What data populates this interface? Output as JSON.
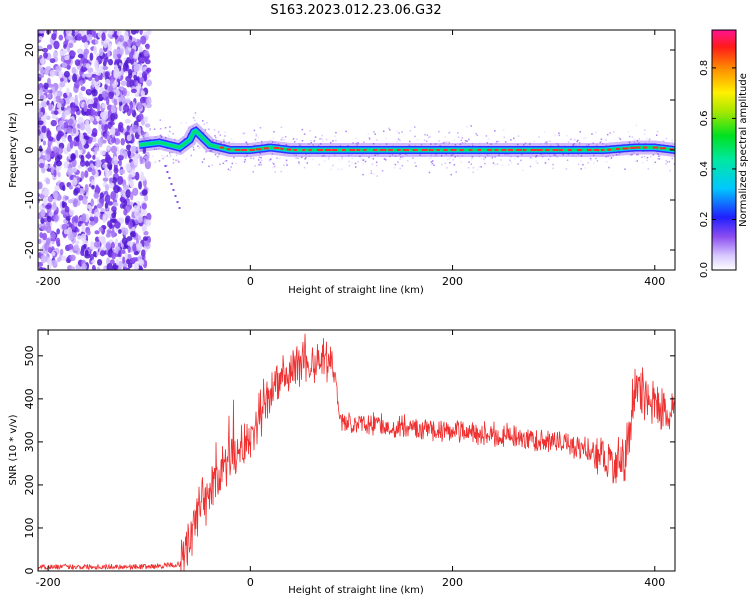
{
  "title": "S163.2023.012.23.06.G32",
  "colors": {
    "snr_line": "#ee3030",
    "frame": "#000000",
    "spectral_low": "#a070f0",
    "spectral_mid": "#00e070",
    "spectral_high": "#ff2a2a"
  },
  "chart_data": [
    {
      "type": "heatmap",
      "xlabel": "Height of straight line (km)",
      "ylabel": "Frequency (Hz)",
      "xlim": [
        -210,
        420
      ],
      "ylim": [
        -24,
        24
      ],
      "xticks": [
        -200,
        0,
        200,
        400
      ],
      "yticks": [
        -20,
        -10,
        0,
        10,
        20
      ],
      "colorbar": {
        "label": "Normalized spectral amplitude",
        "range": [
          0,
          0.95
        ],
        "ticks": [
          0.0,
          0.2,
          0.4,
          0.6,
          0.8
        ],
        "colormap": "rainbow"
      },
      "noise_region": [
        -210,
        -100
      ],
      "signal_track": {
        "x": [
          -110,
          -90,
          -70,
          -60,
          -55,
          -50,
          -40,
          -20,
          0,
          20,
          40,
          60,
          80,
          100,
          150,
          200,
          250,
          300,
          350,
          380,
          400,
          420
        ],
        "y": [
          1,
          1.5,
          0.5,
          2,
          4,
          3,
          1,
          0,
          0,
          0.5,
          0,
          0,
          0,
          0,
          0,
          0,
          0,
          0,
          0,
          0.5,
          0.5,
          0
        ]
      }
    },
    {
      "type": "line",
      "xlabel": "Height of straight line (km)",
      "ylabel": "SNR (10 * v/v)",
      "xlim": [
        -210,
        420
      ],
      "ylim": [
        0,
        560
      ],
      "xticks": [
        -200,
        0,
        200,
        400
      ],
      "yticks": [
        0,
        100,
        200,
        300,
        400,
        500
      ],
      "series": [
        {
          "x": [
            -210,
            -100,
            -70,
            -60,
            -50,
            -40,
            -30,
            -20,
            -10,
            0,
            10,
            20,
            30,
            40,
            50,
            60,
            70,
            80,
            90,
            100,
            150,
            200,
            250,
            300,
            340,
            360,
            370,
            380,
            390,
            400,
            420
          ],
          "values": [
            10,
            10,
            15,
            60,
            140,
            190,
            230,
            260,
            280,
            300,
            370,
            410,
            450,
            470,
            485,
            490,
            495,
            500,
            345,
            345,
            335,
            325,
            315,
            300,
            280,
            250,
            260,
            420,
            410,
            380,
            360
          ]
        }
      ]
    }
  ]
}
